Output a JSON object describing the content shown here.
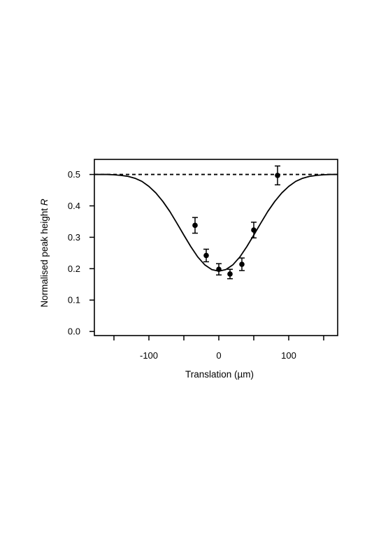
{
  "chart_data": {
    "type": "scatter",
    "xlabel": "Translation (µm)",
    "ylabel": "Normalised peak height",
    "ylabel_symbol": "R",
    "xlim": [
      -178,
      170
    ],
    "ylim": [
      -0.013,
      0.548
    ],
    "x_ticks": [
      -150,
      -100,
      -50,
      0,
      50,
      100,
      150
    ],
    "x_tick_labels": [
      {
        "value": -100,
        "text": "-100"
      },
      {
        "value": 0,
        "text": "0"
      },
      {
        "value": 100,
        "text": "100"
      }
    ],
    "y_ticks": [
      {
        "value": 0.0,
        "text": "0.0"
      },
      {
        "value": 0.1,
        "text": "0.1"
      },
      {
        "value": 0.2,
        "text": "0.2"
      },
      {
        "value": 0.3,
        "text": "0.3"
      },
      {
        "value": 0.4,
        "text": "0.4"
      },
      {
        "value": 0.5,
        "text": "0.5"
      }
    ],
    "grid": false,
    "points": [
      {
        "x": -34,
        "y": 0.338,
        "err": 0.025
      },
      {
        "x": -18,
        "y": 0.242,
        "err": 0.02
      },
      {
        "x": 0,
        "y": 0.198,
        "err": 0.018
      },
      {
        "x": 16,
        "y": 0.183,
        "err": 0.015
      },
      {
        "x": 33,
        "y": 0.214,
        "err": 0.02
      },
      {
        "x": 50,
        "y": 0.323,
        "err": 0.025
      },
      {
        "x": 84,
        "y": 0.497,
        "err": 0.03
      }
    ],
    "fit_curve": {
      "style": "solid",
      "x": [
        -178,
        -160,
        -150,
        -140,
        -130,
        -120,
        -110,
        -100,
        -90,
        -80,
        -70,
        -60,
        -50,
        -40,
        -30,
        -20,
        -10,
        0,
        10,
        20,
        30,
        40,
        50,
        60,
        70,
        80,
        90,
        100,
        110,
        120,
        130,
        140,
        150,
        160,
        170
      ],
      "y": [
        0.5,
        0.5,
        0.499,
        0.497,
        0.494,
        0.488,
        0.478,
        0.462,
        0.441,
        0.414,
        0.382,
        0.345,
        0.307,
        0.27,
        0.237,
        0.212,
        0.197,
        0.192,
        0.197,
        0.212,
        0.237,
        0.27,
        0.307,
        0.345,
        0.382,
        0.414,
        0.441,
        0.462,
        0.478,
        0.488,
        0.494,
        0.497,
        0.499,
        0.5,
        0.5
      ]
    },
    "reference_line": {
      "y": 0.5,
      "style": "dashed"
    }
  }
}
